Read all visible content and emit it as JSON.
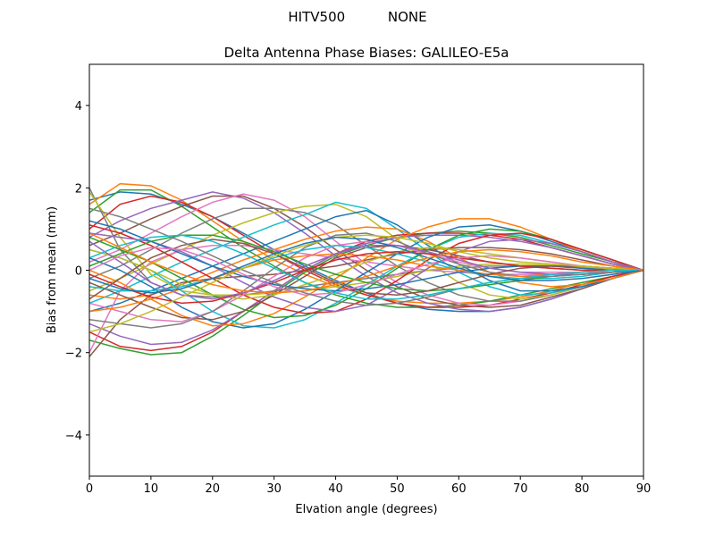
{
  "chart_data": {
    "type": "line",
    "suptitle": "HITV500          NONE",
    "title": "Delta Antenna Phase Biases: GALILEO-E5a",
    "xlabel": "Elvation angle (degrees)",
    "ylabel": "Bias from mean (mm)",
    "xlim": [
      0,
      90
    ],
    "ylim": [
      -5,
      5
    ],
    "xticks": [
      0,
      10,
      20,
      30,
      40,
      50,
      60,
      70,
      80,
      90
    ],
    "yticks": [
      -4,
      -2,
      0,
      2,
      4
    ],
    "ytick_labels": [
      "−4",
      "−2",
      "0",
      "2",
      "4"
    ],
    "grid": false,
    "legend": "none",
    "colors": [
      "#1f77b4",
      "#ff7f0e",
      "#2ca02c",
      "#d62728",
      "#9467bd",
      "#8c564b",
      "#e377c2",
      "#7f7f7f",
      "#bcbd22",
      "#17becf"
    ],
    "x": [
      0,
      5,
      10,
      15,
      20,
      25,
      30,
      35,
      40,
      45,
      50,
      55,
      60,
      65,
      70,
      75,
      80,
      85,
      90
    ],
    "series": [
      {
        "values": [
          1.7,
          1.9,
          1.85,
          1.6,
          1.3,
          0.9,
          0.5,
          0.1,
          -0.25,
          -0.55,
          -0.8,
          -0.95,
          -1.0,
          -1.0,
          -0.9,
          -0.7,
          -0.45,
          -0.2,
          0.0
        ]
      },
      {
        "values": [
          1.6,
          2.1,
          2.05,
          1.7,
          1.2,
          0.7,
          0.25,
          -0.1,
          -0.4,
          -0.6,
          -0.75,
          -0.8,
          -0.8,
          -0.75,
          -0.65,
          -0.5,
          -0.3,
          -0.15,
          0.0
        ]
      },
      {
        "values": [
          1.4,
          1.95,
          1.95,
          1.55,
          1.05,
          0.55,
          0.1,
          -0.3,
          -0.6,
          -0.8,
          -0.9,
          -0.9,
          -0.85,
          -0.75,
          -0.6,
          -0.45,
          -0.3,
          -0.15,
          0.0
        ]
      },
      {
        "values": [
          1.0,
          1.6,
          1.8,
          1.65,
          1.3,
          0.85,
          0.4,
          0.0,
          -0.35,
          -0.6,
          -0.8,
          -0.9,
          -0.9,
          -0.85,
          -0.7,
          -0.55,
          -0.35,
          -0.15,
          0.0
        ]
      },
      {
        "values": [
          0.8,
          1.2,
          1.5,
          1.7,
          1.9,
          1.75,
          1.4,
          0.9,
          0.35,
          -0.15,
          -0.55,
          -0.8,
          -0.95,
          -1.0,
          -0.9,
          -0.7,
          -0.45,
          -0.2,
          0.0
        ]
      },
      {
        "values": [
          0.6,
          0.9,
          1.25,
          1.55,
          1.8,
          1.8,
          1.5,
          1.05,
          0.5,
          0.0,
          -0.4,
          -0.7,
          -0.85,
          -0.9,
          -0.85,
          -0.65,
          -0.45,
          -0.2,
          0.0
        ]
      },
      {
        "values": [
          0.2,
          0.5,
          0.9,
          1.3,
          1.65,
          1.85,
          1.7,
          1.3,
          0.7,
          0.15,
          -0.3,
          -0.6,
          -0.8,
          -0.85,
          -0.75,
          -0.6,
          -0.4,
          -0.2,
          0.0
        ]
      },
      {
        "values": [
          -0.2,
          0.1,
          0.5,
          0.9,
          1.25,
          1.5,
          1.5,
          1.4,
          1.1,
          0.6,
          0.1,
          -0.3,
          -0.6,
          -0.75,
          -0.75,
          -0.6,
          -0.4,
          -0.2,
          0.0
        ]
      },
      {
        "values": [
          -0.5,
          -0.2,
          0.15,
          0.5,
          0.85,
          1.15,
          1.4,
          1.55,
          1.6,
          1.3,
          0.75,
          0.2,
          -0.3,
          -0.6,
          -0.7,
          -0.6,
          -0.4,
          -0.2,
          0.0
        ]
      },
      {
        "values": [
          -0.8,
          -0.5,
          -0.15,
          0.2,
          0.5,
          0.8,
          1.1,
          1.35,
          1.65,
          1.5,
          1.0,
          0.45,
          -0.05,
          -0.4,
          -0.6,
          -0.55,
          -0.4,
          -0.2,
          0.0
        ]
      },
      {
        "values": [
          -1.0,
          -0.8,
          -0.5,
          -0.2,
          0.1,
          0.4,
          0.7,
          1.0,
          1.3,
          1.45,
          1.1,
          0.6,
          0.15,
          -0.25,
          -0.5,
          -0.5,
          -0.4,
          -0.2,
          0.0
        ]
      },
      {
        "values": [
          -0.6,
          -0.7,
          -0.6,
          -0.35,
          -0.05,
          0.25,
          0.5,
          0.75,
          0.95,
          1.05,
          1.0,
          0.7,
          0.3,
          -0.05,
          -0.3,
          -0.4,
          -0.35,
          -0.2,
          0.0
        ]
      },
      {
        "values": [
          -1.7,
          -1.9,
          -2.05,
          -2.0,
          -1.6,
          -1.1,
          -0.55,
          -0.05,
          0.35,
          0.6,
          0.8,
          0.9,
          0.95,
          0.9,
          0.8,
          0.6,
          0.4,
          0.2,
          0.0
        ]
      },
      {
        "values": [
          -1.5,
          -1.85,
          -1.95,
          -1.85,
          -1.5,
          -1.0,
          -0.5,
          0.0,
          0.4,
          0.7,
          0.85,
          0.9,
          0.9,
          0.85,
          0.75,
          0.55,
          0.35,
          0.15,
          0.0
        ]
      },
      {
        "values": [
          -1.3,
          -1.6,
          -1.8,
          -1.75,
          -1.45,
          -1.0,
          -0.5,
          0.0,
          0.4,
          0.65,
          0.8,
          0.85,
          0.85,
          0.8,
          0.7,
          0.55,
          0.35,
          0.15,
          0.0
        ]
      },
      {
        "values": [
          -2.1,
          -1.2,
          -0.6,
          -0.3,
          -0.2,
          -0.15,
          -0.1,
          0.0,
          0.1,
          0.25,
          0.4,
          0.5,
          0.55,
          0.55,
          0.5,
          0.4,
          0.25,
          0.1,
          0.0
        ]
      },
      {
        "values": [
          -2.0,
          -0.5,
          0.2,
          0.5,
          0.6,
          0.6,
          0.5,
          0.4,
          0.3,
          0.2,
          0.1,
          0.0,
          -0.05,
          -0.1,
          -0.1,
          -0.1,
          -0.05,
          -0.05,
          0.0
        ]
      },
      {
        "values": [
          2.0,
          0.5,
          -0.3,
          -0.6,
          -0.65,
          -0.6,
          -0.5,
          -0.4,
          -0.3,
          -0.2,
          -0.1,
          0.0,
          0.05,
          0.1,
          0.1,
          0.1,
          0.05,
          0.05,
          0.0
        ]
      },
      {
        "values": [
          1.9,
          0.8,
          -0.1,
          -0.5,
          -0.6,
          -0.6,
          -0.55,
          -0.5,
          -0.4,
          -0.3,
          -0.15,
          0.0,
          0.1,
          0.15,
          0.15,
          0.12,
          0.08,
          0.04,
          0.0
        ]
      },
      {
        "values": [
          0.5,
          0.3,
          0.0,
          -0.5,
          -1.0,
          -1.35,
          -1.4,
          -1.2,
          -0.8,
          -0.35,
          0.1,
          0.5,
          0.8,
          0.9,
          0.85,
          0.65,
          0.45,
          0.2,
          0.0
        ]
      },
      {
        "values": [
          0.3,
          0.0,
          -0.4,
          -0.9,
          -1.25,
          -1.4,
          -1.3,
          -0.95,
          -0.5,
          -0.05,
          0.4,
          0.8,
          1.05,
          1.1,
          0.95,
          0.7,
          0.45,
          0.2,
          0.0
        ]
      },
      {
        "values": [
          0.0,
          -0.3,
          -0.7,
          -1.1,
          -1.35,
          -1.3,
          -1.05,
          -0.65,
          -0.2,
          0.3,
          0.75,
          1.05,
          1.25,
          1.25,
          1.05,
          0.75,
          0.45,
          0.2,
          0.0
        ]
      },
      {
        "values": [
          0.8,
          0.5,
          0.2,
          -0.2,
          -0.6,
          -0.95,
          -1.15,
          -1.1,
          -0.85,
          -0.45,
          0.05,
          0.5,
          0.85,
          1.0,
          0.95,
          0.75,
          0.5,
          0.25,
          0.0
        ]
      },
      {
        "values": [
          1.1,
          0.9,
          0.6,
          0.2,
          -0.2,
          -0.6,
          -0.9,
          -1.05,
          -1.0,
          -0.7,
          -0.25,
          0.25,
          0.65,
          0.85,
          0.9,
          0.75,
          0.5,
          0.25,
          0.0
        ]
      },
      {
        "values": [
          0.9,
          0.8,
          0.7,
          0.45,
          0.1,
          -0.3,
          -0.65,
          -0.9,
          -1.0,
          -0.85,
          -0.45,
          0.05,
          0.45,
          0.7,
          0.75,
          0.65,
          0.45,
          0.2,
          0.0
        ]
      },
      {
        "values": [
          -0.3,
          -0.6,
          -0.9,
          -1.15,
          -1.2,
          -1.0,
          -0.6,
          -0.15,
          0.3,
          0.55,
          0.6,
          0.5,
          0.35,
          0.2,
          0.1,
          0.05,
          0.0,
          0.0,
          0.0
        ]
      },
      {
        "values": [
          -0.8,
          -1.0,
          -1.2,
          -1.25,
          -1.0,
          -0.6,
          -0.15,
          0.3,
          0.6,
          0.7,
          0.6,
          0.4,
          0.2,
          0.05,
          -0.05,
          -0.05,
          -0.05,
          0.0,
          0.0
        ]
      },
      {
        "values": [
          -1.2,
          -1.3,
          -1.4,
          -1.3,
          -1.0,
          -0.5,
          0.05,
          0.55,
          0.85,
          0.9,
          0.7,
          0.4,
          0.15,
          -0.05,
          -0.15,
          -0.15,
          -0.1,
          -0.05,
          0.0
        ]
      },
      {
        "values": [
          0.5,
          0.3,
          0.0,
          -0.35,
          -0.6,
          -0.7,
          -0.6,
          -0.35,
          -0.1,
          0.2,
          0.45,
          0.55,
          0.5,
          0.4,
          0.3,
          0.2,
          0.1,
          0.05,
          0.0
        ]
      },
      {
        "values": [
          -0.4,
          -0.5,
          -0.5,
          -0.4,
          -0.2,
          0.05,
          0.3,
          0.5,
          0.6,
          0.55,
          0.4,
          0.2,
          0.0,
          -0.15,
          -0.2,
          -0.2,
          -0.15,
          -0.05,
          0.0
        ]
      },
      {
        "values": [
          1.2,
          1.0,
          0.7,
          0.4,
          0.1,
          -0.15,
          -0.35,
          -0.45,
          -0.5,
          -0.45,
          -0.35,
          -0.2,
          -0.05,
          0.05,
          0.1,
          0.1,
          0.05,
          0.0,
          0.0
        ]
      },
      {
        "values": [
          -1.0,
          -0.9,
          -0.7,
          -0.45,
          -0.2,
          0.05,
          0.25,
          0.35,
          0.4,
          0.35,
          0.25,
          0.1,
          0.0,
          -0.1,
          -0.15,
          -0.1,
          -0.05,
          0.0,
          0.0
        ]
      },
      {
        "values": [
          0.1,
          0.4,
          0.7,
          0.85,
          0.85,
          0.7,
          0.45,
          0.15,
          -0.1,
          -0.3,
          -0.45,
          -0.5,
          -0.45,
          -0.35,
          -0.25,
          -0.15,
          -0.1,
          -0.05,
          0.0
        ]
      },
      {
        "values": [
          -0.1,
          -0.4,
          -0.65,
          -0.8,
          -0.75,
          -0.55,
          -0.3,
          0.0,
          0.25,
          0.4,
          0.45,
          0.4,
          0.3,
          0.2,
          0.1,
          0.05,
          0.0,
          0.0,
          0.0
        ]
      },
      {
        "values": [
          0.7,
          0.2,
          -0.3,
          -0.6,
          -0.7,
          -0.55,
          -0.25,
          0.1,
          0.4,
          0.6,
          0.6,
          0.45,
          0.25,
          0.05,
          -0.05,
          -0.1,
          -0.1,
          -0.05,
          0.0
        ]
      },
      {
        "values": [
          -0.7,
          -0.2,
          0.3,
          0.6,
          0.75,
          0.65,
          0.4,
          0.05,
          -0.3,
          -0.55,
          -0.6,
          -0.5,
          -0.3,
          -0.1,
          0.05,
          0.1,
          0.1,
          0.05,
          0.0
        ]
      },
      {
        "values": [
          0.0,
          0.35,
          0.55,
          0.5,
          0.25,
          -0.1,
          -0.4,
          -0.6,
          -0.55,
          -0.35,
          -0.1,
          0.15,
          0.3,
          0.35,
          0.3,
          0.2,
          0.1,
          0.05,
          0.0
        ]
      },
      {
        "values": [
          1.5,
          1.3,
          1.0,
          0.7,
          0.35,
          0.0,
          -0.3,
          -0.55,
          -0.75,
          -0.85,
          -0.8,
          -0.65,
          -0.45,
          -0.3,
          -0.2,
          -0.15,
          -0.1,
          -0.05,
          0.0
        ]
      },
      {
        "values": [
          -1.5,
          -1.3,
          -1.0,
          -0.65,
          -0.3,
          0.05,
          0.35,
          0.6,
          0.8,
          0.85,
          0.8,
          0.65,
          0.45,
          0.3,
          0.2,
          0.15,
          0.1,
          0.05,
          0.0
        ]
      },
      {
        "values": [
          0.3,
          0.6,
          0.8,
          0.85,
          0.7,
          0.4,
          0.05,
          -0.3,
          -0.55,
          -0.7,
          -0.7,
          -0.6,
          -0.45,
          -0.3,
          -0.2,
          -0.1,
          -0.05,
          0.0,
          0.0
        ]
      },
      {
        "values": [
          -0.2,
          -0.45,
          -0.55,
          -0.45,
          -0.2,
          0.1,
          0.4,
          0.65,
          0.8,
          0.75,
          0.55,
          0.3,
          0.05,
          -0.15,
          -0.25,
          -0.25,
          -0.2,
          -0.1,
          0.0
        ]
      },
      {
        "values": [
          0.9,
          0.55,
          0.2,
          -0.1,
          -0.35,
          -0.5,
          -0.55,
          -0.5,
          -0.35,
          -0.15,
          0.1,
          0.3,
          0.45,
          0.5,
          0.45,
          0.35,
          0.2,
          0.1,
          0.0
        ]
      }
    ]
  }
}
